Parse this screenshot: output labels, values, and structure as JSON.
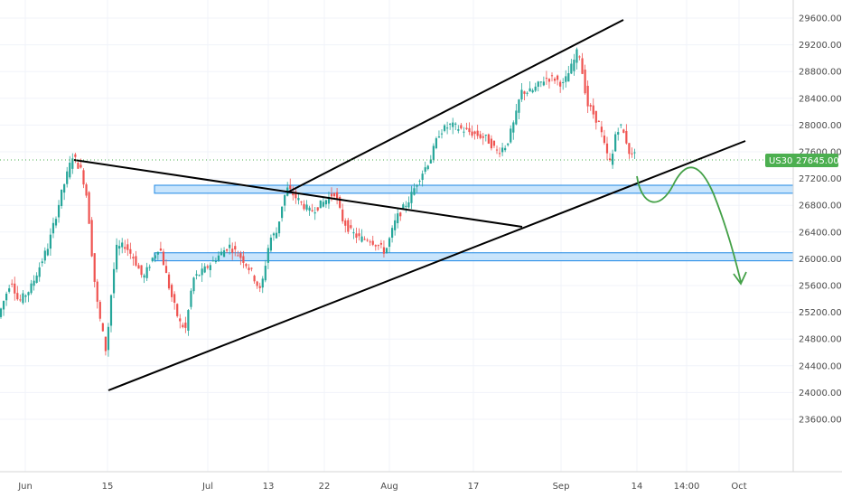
{
  "chart_data": {
    "type": "candlestick",
    "symbol": "US30",
    "last_price": 27645.0,
    "last_price_label": "27645.0000",
    "y_axis": {
      "range": [
        23400,
        29800
      ],
      "ticks": [
        23600,
        24000,
        24400,
        24800,
        25200,
        25600,
        26000,
        26400,
        26800,
        27200,
        27600,
        28000,
        28400,
        28800,
        29200,
        29600
      ],
      "tick_labels": [
        "23600.0000",
        "24000.0000",
        "24400.0000",
        "24800.0000",
        "25200.0000",
        "25600.0000",
        "26000.0000",
        "26400.0000",
        "26800.0000",
        "27200.0000",
        "27600.0000",
        "28000.0000",
        "28400.0000",
        "28800.0000",
        "29200.0000",
        "29600.0000"
      ]
    },
    "x_axis": {
      "labels": [
        "Jun",
        "15",
        "Jul",
        "13",
        "22",
        "Aug",
        "17",
        "Sep",
        "14",
        "14:00",
        "Oct"
      ]
    },
    "colors": {
      "up": "#26a69a",
      "down": "#ef5350",
      "wick": "#6d6d6d",
      "trendline": "#000000",
      "zone_fill": "#bbdefb",
      "zone_border": "#1e88e5",
      "projection": "#43a047",
      "price_tag": "#4caf50",
      "price_line": "#4caf50",
      "grid": "#f0f3fa"
    },
    "zones": [
      {
        "from": 26980,
        "to": 27100
      },
      {
        "from": 25970,
        "to": 26090
      }
    ]
  }
}
